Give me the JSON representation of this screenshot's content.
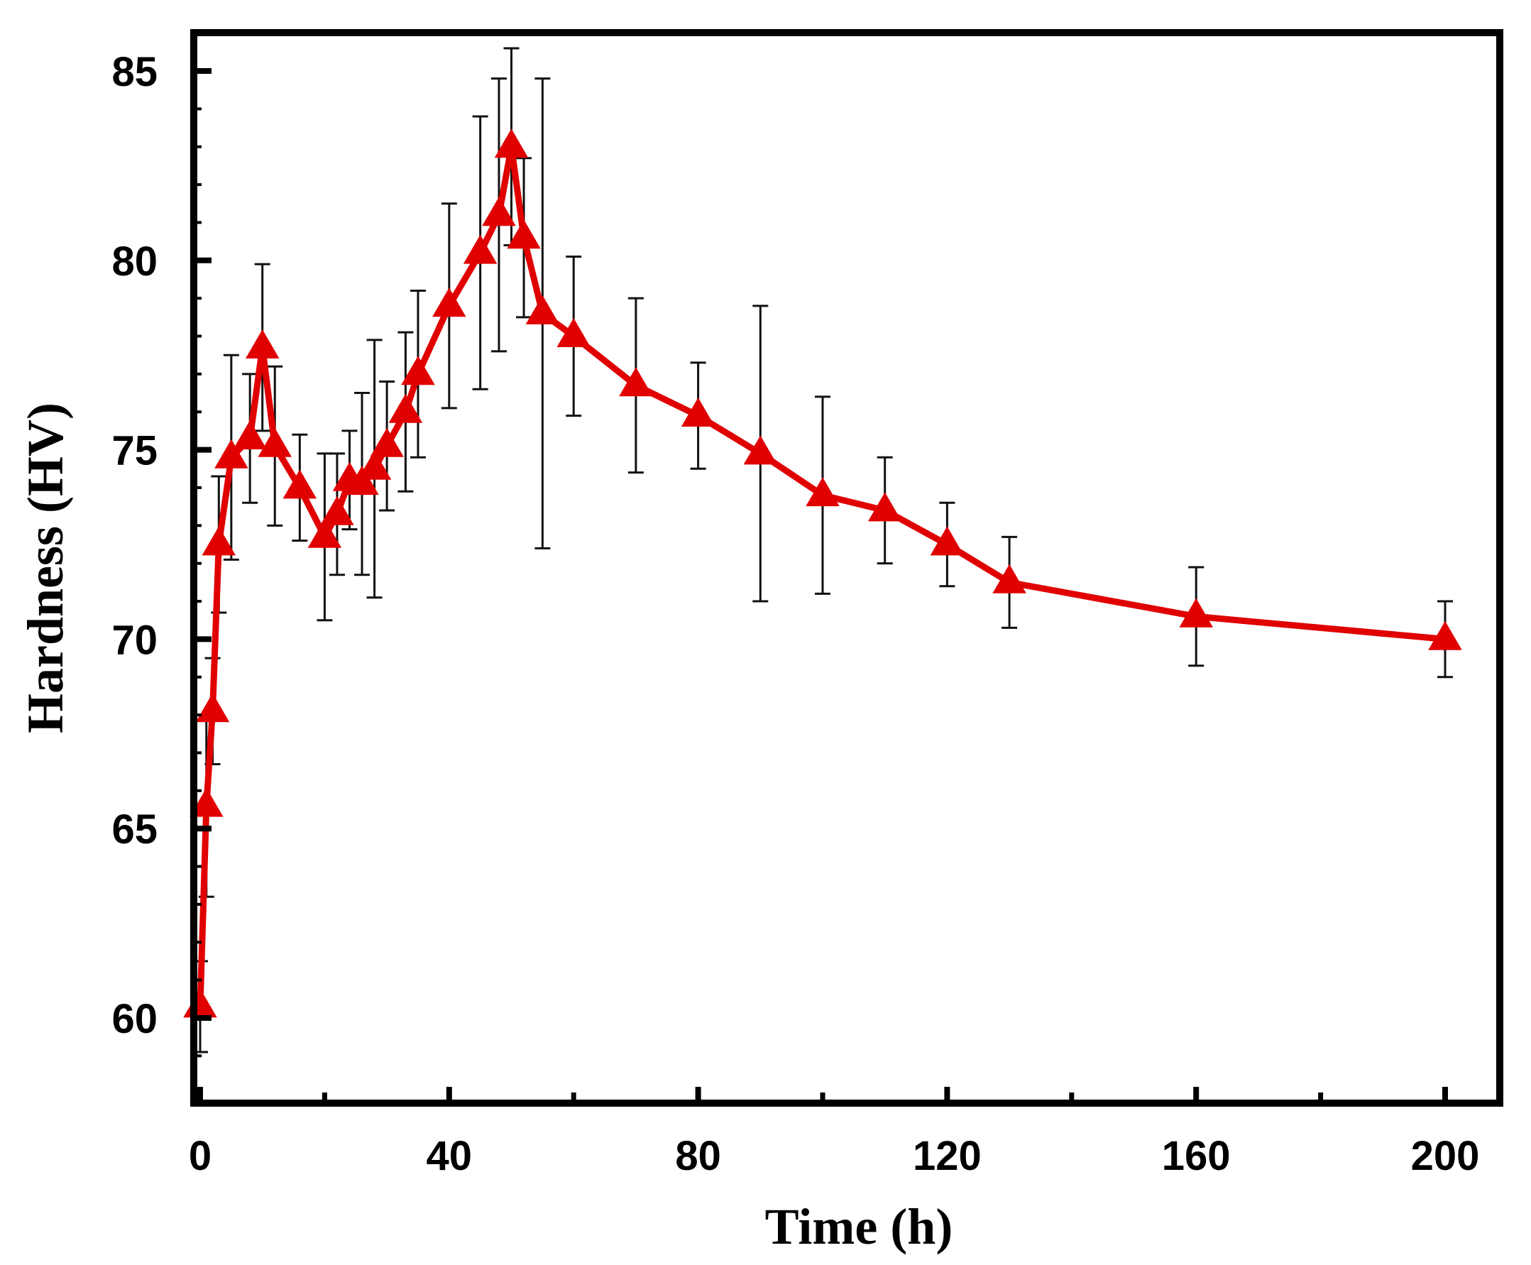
{
  "chart_data": {
    "type": "line",
    "title": "",
    "xlabel": "Time (h)",
    "ylabel": "Hardness (HV)",
    "xlim": [
      0,
      208
    ],
    "ylim": [
      58,
      86
    ],
    "xticks": [
      0,
      40,
      80,
      120,
      160,
      200
    ],
    "yticks": [
      60,
      65,
      70,
      75,
      80,
      85
    ],
    "grid": false,
    "legend": "none",
    "series": [
      {
        "name": "Hardness",
        "color": "#e00000",
        "marker": "triangle",
        "x": [
          0,
          1,
          2,
          3,
          5,
          8,
          10,
          12,
          16,
          20,
          22,
          24,
          26,
          28,
          30,
          33,
          35,
          40,
          45,
          48,
          50,
          52,
          55,
          60,
          70,
          80,
          90,
          100,
          110,
          120,
          130,
          160,
          200
        ],
        "y": [
          60.3,
          65.6,
          68.1,
          72.5,
          74.8,
          75.3,
          77.7,
          75.1,
          74.0,
          72.7,
          73.3,
          74.2,
          74.1,
          74.5,
          75.1,
          76.0,
          77.0,
          78.8,
          80.2,
          81.2,
          83.0,
          80.6,
          78.6,
          78.0,
          76.7,
          75.9,
          74.9,
          73.8,
          73.4,
          72.5,
          71.5,
          70.6,
          70.0
        ],
        "err": [
          1.2,
          2.4,
          1.4,
          1.8,
          2.7,
          1.7,
          2.2,
          2.1,
          1.4,
          2.2,
          1.6,
          1.3,
          2.4,
          3.4,
          1.7,
          2.1,
          2.2,
          2.7,
          3.6,
          3.6,
          2.6,
          2.1,
          6.2,
          2.1,
          2.3,
          1.4,
          3.9,
          2.6,
          1.4,
          1.1,
          1.2,
          1.3,
          1.0
        ]
      }
    ]
  }
}
